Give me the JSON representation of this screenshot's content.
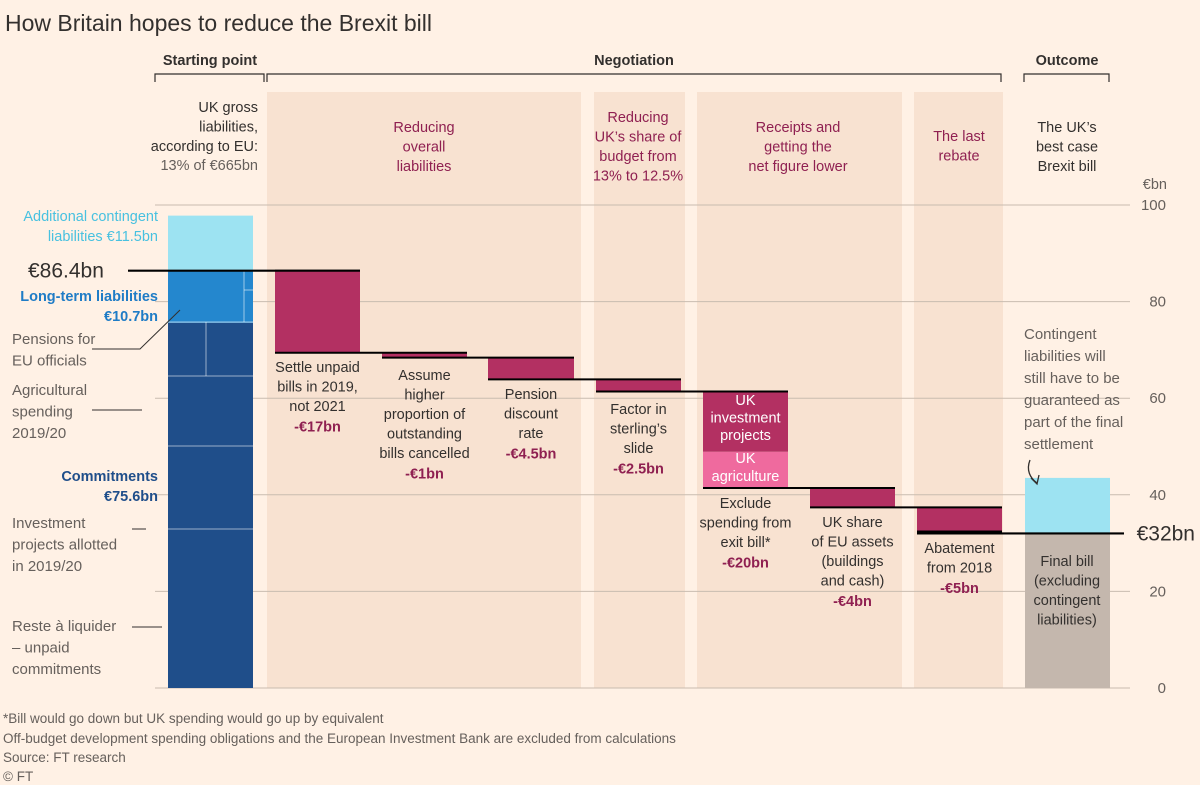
{
  "title": "How Britain hopes to reduce the Brexit bill",
  "colors": {
    "background": "#fff1e5",
    "band": "#f8e2d1",
    "grid": "#c9bcb0",
    "axis_text": "#66605c",
    "text": "#33302e",
    "note_text": "#66605c",
    "reduction": "#b33062",
    "uk_agriculture": "#ef6a9e",
    "contingent": "#9de3f2",
    "long_term": "#2487ce",
    "commitments": "#1f4e8a",
    "final": "#c4b7ad",
    "label_reduction": "#8f2051",
    "label_contingent": "#48c1e0",
    "label_long_term": "#1f7cc6",
    "label_commitments": "#1f4e8a",
    "leader": "#33302e"
  },
  "sections": {
    "start": "Starting point",
    "negotiation": "Negotiation",
    "outcome": "Outcome"
  },
  "start_caption": {
    "lines": [
      "UK gross",
      "liabilities,",
      "according to EU:"
    ],
    "sub": "13% of €665bn"
  },
  "band_titles": [
    {
      "lines": [
        "Reducing",
        "overall",
        "liabilities"
      ]
    },
    {
      "lines": [
        "Reducing",
        "UK’s share of",
        "budget from",
        "13% to 12.5%"
      ]
    },
    {
      "lines": [
        "Receipts and",
        "getting the",
        "net figure lower"
      ]
    },
    {
      "lines": [
        "The last",
        "rebate"
      ]
    }
  ],
  "outcome_caption": [
    "The UK’s",
    "best case",
    "Brexit bill"
  ],
  "axis": {
    "unit": "€bn",
    "min": 0,
    "max": 100,
    "ticks": [
      0,
      20,
      40,
      60,
      80,
      100
    ]
  },
  "totals": {
    "start_label": "€86.4bn",
    "end_label": "€32bn"
  },
  "stack_labels": {
    "contingent": [
      "Additional contingent",
      "liabilities €11.5bn"
    ],
    "long_term": [
      "Long-term liabilities",
      "€10.7bn"
    ],
    "commitments": [
      "Commitments",
      "€75.6bn"
    ]
  },
  "component_notes": [
    {
      "lines": [
        "Pensions for",
        "EU officials"
      ]
    },
    {
      "lines": [
        "Agricultural",
        "spending",
        "2019/20"
      ]
    },
    {
      "lines": [
        "Investment",
        "projects allotted",
        "in 2019/20"
      ]
    },
    {
      "lines": [
        "Reste à liquider",
        "– unpaid",
        "commitments"
      ]
    }
  ],
  "inner_labels": {
    "investment": [
      "UK",
      "investment",
      "projects"
    ],
    "agriculture": [
      "UK",
      "agriculture"
    ]
  },
  "outcome_note": [
    "Contingent",
    "liabilities will",
    "still have to be",
    "guaranteed as",
    "part of the final",
    "settlement"
  ],
  "final_label": [
    "Final bill",
    "(excluding",
    "contingent",
    "liabilities)"
  ],
  "chart_data": {
    "type": "waterfall",
    "title": "How Britain hopes to reduce the Brexit bill",
    "unit": "€bn",
    "ylim": [
      0,
      100
    ],
    "grid": true,
    "starting_point": {
      "total": 86.4,
      "stack": [
        {
          "name": "Commitments",
          "value": 75.6
        },
        {
          "name": "Long-term liabilities",
          "value": 10.7
        },
        {
          "name": "Additional contingent liabilities",
          "value": 11.5
        }
      ]
    },
    "steps": [
      {
        "label": [
          "Settle unpaid",
          "bills in 2019,",
          "not 2021"
        ],
        "value": -17,
        "value_label": "-€17bn"
      },
      {
        "label": [
          "Assume",
          "higher",
          "proportion of",
          "outstanding",
          "bills cancelled"
        ],
        "value": -1,
        "value_label": "-€1bn"
      },
      {
        "label": [
          "Pension",
          "discount",
          "rate"
        ],
        "value": -4.5,
        "value_label": "-€4.5bn"
      },
      {
        "label": [
          "Factor in",
          "sterling’s",
          "slide"
        ],
        "value": -2.5,
        "value_label": "-€2.5bn"
      },
      {
        "label": [
          "Exclude",
          "spending from",
          "exit bill*"
        ],
        "value": -20,
        "value_label": "-€20bn",
        "parts": [
          {
            "name": "UK investment projects",
            "value": -12.5
          },
          {
            "name": "UK agriculture",
            "value": -7.5
          }
        ]
      },
      {
        "label": [
          "UK share",
          "of EU assets",
          "(buildings",
          "and cash)"
        ],
        "value": -4,
        "value_label": "-€4bn"
      },
      {
        "label": [
          "Abatement",
          "from 2018"
        ],
        "value": -5,
        "value_label": "-€5bn"
      }
    ],
    "outcome": {
      "final_bill": 32,
      "contingent": 11.5,
      "total": 43.5
    }
  },
  "footer": [
    "*Bill would go down but UK spending would go up by equivalent",
    "Off-budget development spending obligations and the European Investment Bank are excluded from calculations",
    "Source: FT research",
    "© FT"
  ]
}
